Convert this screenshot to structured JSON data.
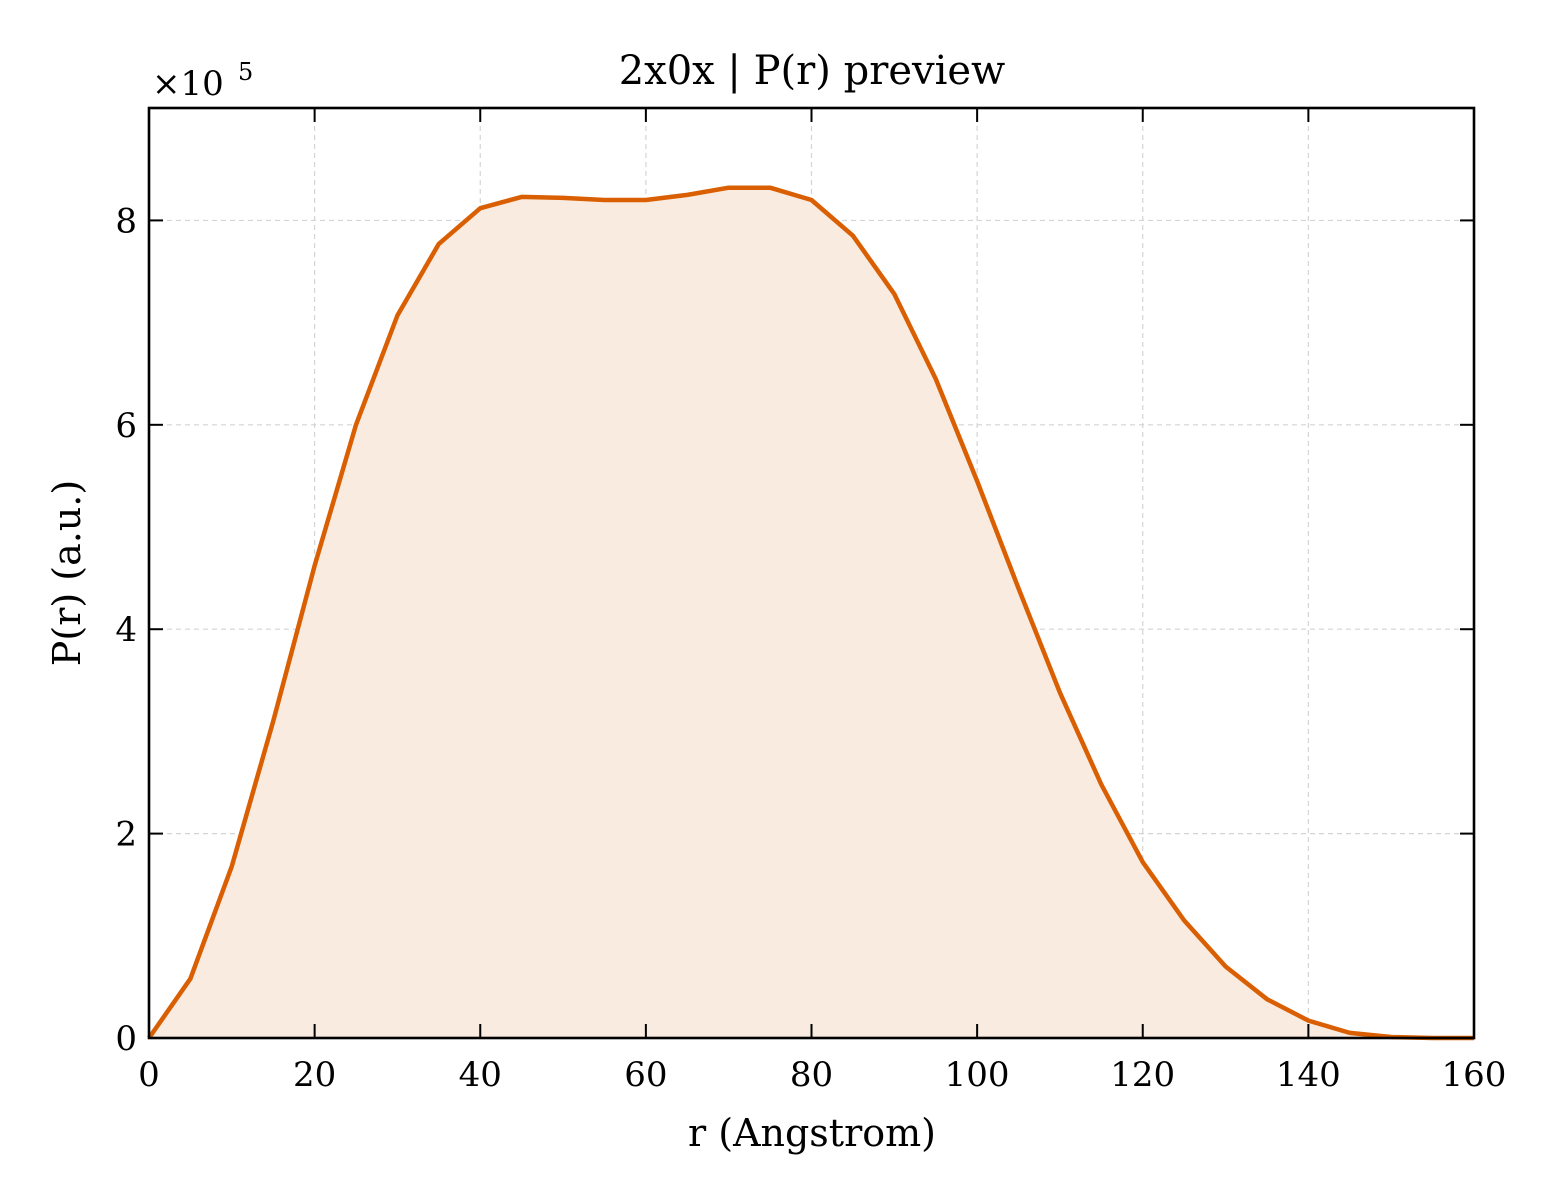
{
  "chart_data": {
    "type": "area",
    "title": "2x0x | P(r) preview",
    "xlabel": "r (Angstrom)",
    "ylabel": "P(r) (a.u.)",
    "y_multiplier_label": "×10",
    "y_multiplier_exponent": "5",
    "xlim": [
      0,
      160
    ],
    "ylim": [
      0,
      9.1
    ],
    "xticks": [
      0,
      20,
      40,
      60,
      80,
      100,
      120,
      140,
      160
    ],
    "yticks": [
      0,
      2,
      4,
      6,
      8
    ],
    "grid": true,
    "line_color": "#d95f02",
    "fill_color": "#f9ebe0",
    "series": [
      {
        "x": [
          0,
          5,
          10,
          15,
          20,
          25,
          30,
          35,
          40,
          45,
          50,
          55,
          60,
          65,
          70,
          75,
          80,
          85,
          90,
          95,
          100,
          105,
          110,
          115,
          120,
          125,
          130,
          135,
          140,
          145,
          150,
          155,
          160
        ],
        "y": [
          0,
          0.58,
          1.68,
          3.1,
          4.62,
          6.0,
          7.07,
          7.77,
          8.12,
          8.23,
          8.22,
          8.2,
          8.2,
          8.25,
          8.32,
          8.32,
          8.2,
          7.85,
          7.28,
          6.45,
          5.45,
          4.4,
          3.38,
          2.48,
          1.72,
          1.15,
          0.7,
          0.38,
          0.17,
          0.05,
          0.01,
          0.0,
          0.0
        ]
      }
    ]
  }
}
